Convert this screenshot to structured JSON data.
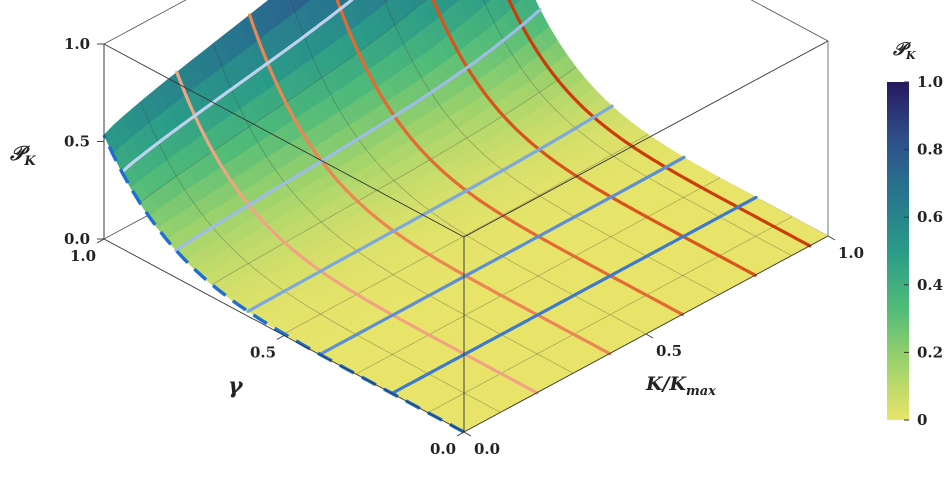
{
  "chart_data": {
    "type": "surface3d",
    "surface": {
      "function": "phi_K(gamma, K/K_max) — probability-like surface rising toward gamma=1 and K/K_max=1",
      "colormap": [
        "#e8e46a",
        "#9fd36b",
        "#4fbb79",
        "#2a9b88",
        "#27768e",
        "#2e4f8a",
        "#27195e"
      ]
    },
    "axes": {
      "x": {
        "label": "K/K_max",
        "label_main": "K/K",
        "label_sub": "max",
        "ticks": [
          "0.0",
          "0.5",
          "1.0"
        ],
        "range": [
          0,
          1
        ]
      },
      "y": {
        "label": "γ",
        "ticks": [
          "0.0",
          "0.5",
          "1.0"
        ],
        "range": [
          0,
          1
        ]
      },
      "z": {
        "label": "𝒫_K",
        "label_main": "𝒫",
        "label_sub": "K",
        "ticks": [
          "0.0",
          "0.5",
          "1.0"
        ],
        "range": [
          0,
          1
        ]
      }
    },
    "colorbar": {
      "title": "𝒫_K",
      "title_main": "𝒫",
      "title_sub": "K",
      "ticks": [
        "0",
        "0.2",
        "0.4",
        "0.6",
        "0.8",
        "1.0"
      ],
      "range": [
        0,
        1
      ]
    },
    "series": [
      {
        "group": "constant K/K_max curves",
        "values_K_over_Kmax": [
          0.2,
          0.4,
          0.6,
          0.8,
          0.95
        ],
        "colors": [
          "#f0a482",
          "#ec8653",
          "#e46a34",
          "#d9541c",
          "#cc3c0a"
        ]
      },
      {
        "group": "constant gamma curves",
        "values_gamma": [
          0.2,
          0.4,
          0.6,
          0.8,
          0.95
        ],
        "colors": [
          "#3e7acb",
          "#5d8fd2",
          "#7ea7dc",
          "#9dbde6",
          "#bdd2ef"
        ]
      },
      {
        "group": "gamma = 0 boundary",
        "style": "dashed",
        "color": "#1f6fd0"
      }
    ]
  }
}
